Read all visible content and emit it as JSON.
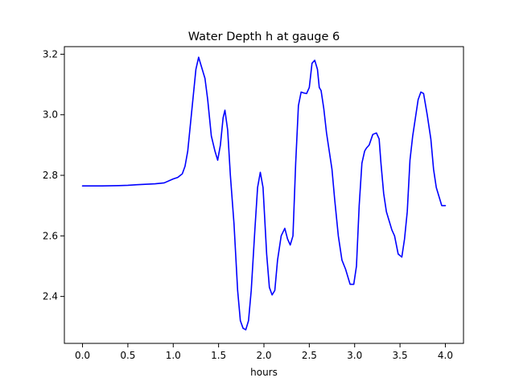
{
  "chart_data": {
    "type": "line",
    "title": "Water Depth h at gauge 6",
    "xlabel": "hours",
    "ylabel": "",
    "xlim": [
      -0.2,
      4.2
    ],
    "ylim": [
      2.245,
      3.225
    ],
    "xticks": [
      0.0,
      0.5,
      1.0,
      1.5,
      2.0,
      2.5,
      3.0,
      3.5,
      4.0
    ],
    "xtick_labels": [
      "0.0",
      "0.5",
      "1.0",
      "1.5",
      "2.0",
      "2.5",
      "3.0",
      "3.5",
      "4.0"
    ],
    "yticks": [
      2.4,
      2.6,
      2.8,
      3.0,
      3.2
    ],
    "ytick_labels": [
      "2.4",
      "2.6",
      "2.8",
      "3.0",
      "3.2"
    ],
    "grid": false,
    "series": [
      {
        "color": "#0000ff",
        "x": [
          0.0,
          0.2,
          0.4,
          0.5,
          0.6,
          0.8,
          0.9,
          1.0,
          1.05,
          1.1,
          1.13,
          1.16,
          1.2,
          1.25,
          1.28,
          1.31,
          1.35,
          1.38,
          1.42,
          1.46,
          1.49,
          1.52,
          1.55,
          1.57,
          1.6,
          1.63,
          1.67,
          1.71,
          1.74,
          1.77,
          1.8,
          1.83,
          1.86,
          1.9,
          1.93,
          1.96,
          1.99,
          2.03,
          2.06,
          2.09,
          2.12,
          2.15,
          2.19,
          2.23,
          2.26,
          2.29,
          2.32,
          2.35,
          2.38,
          2.41,
          2.44,
          2.47,
          2.5,
          2.53,
          2.56,
          2.59,
          2.61,
          2.63,
          2.66,
          2.69,
          2.72,
          2.75,
          2.78,
          2.82,
          2.86,
          2.9,
          2.95,
          2.99,
          3.02,
          3.05,
          3.08,
          3.11,
          3.13,
          3.16,
          3.2,
          3.24,
          3.27,
          3.29,
          3.32,
          3.35,
          3.38,
          3.41,
          3.44,
          3.48,
          3.52,
          3.55,
          3.58,
          3.61,
          3.64,
          3.67,
          3.7,
          3.73,
          3.76,
          3.8,
          3.84,
          3.87,
          3.9,
          3.93,
          3.96,
          4.0
        ],
        "y": [
          2.765,
          2.765,
          2.766,
          2.767,
          2.769,
          2.772,
          2.775,
          2.788,
          2.793,
          2.805,
          2.83,
          2.88,
          3.0,
          3.15,
          3.19,
          3.16,
          3.12,
          3.05,
          2.93,
          2.88,
          2.85,
          2.9,
          2.99,
          3.015,
          2.95,
          2.8,
          2.64,
          2.42,
          2.32,
          2.295,
          2.29,
          2.32,
          2.42,
          2.62,
          2.76,
          2.81,
          2.76,
          2.54,
          2.43,
          2.405,
          2.42,
          2.52,
          2.6,
          2.625,
          2.59,
          2.57,
          2.6,
          2.84,
          3.03,
          3.075,
          3.072,
          3.07,
          3.09,
          3.17,
          3.18,
          3.15,
          3.09,
          3.08,
          3.02,
          2.94,
          2.88,
          2.82,
          2.72,
          2.6,
          2.52,
          2.49,
          2.44,
          2.44,
          2.5,
          2.7,
          2.84,
          2.88,
          2.89,
          2.9,
          2.935,
          2.94,
          2.92,
          2.84,
          2.74,
          2.68,
          2.65,
          2.62,
          2.6,
          2.54,
          2.53,
          2.59,
          2.68,
          2.85,
          2.93,
          2.99,
          3.05,
          3.075,
          3.07,
          3.0,
          2.92,
          2.82,
          2.76,
          2.73,
          2.7,
          2.7
        ]
      }
    ]
  }
}
